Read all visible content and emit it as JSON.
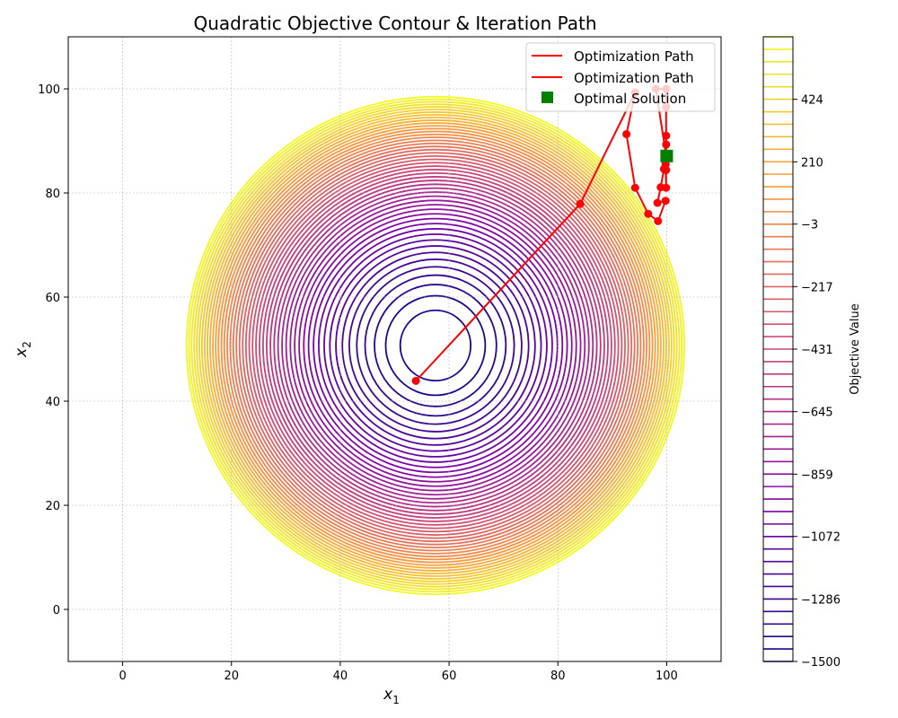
{
  "chart_data": {
    "type": "contour",
    "title": "Quadratic Objective Contour & Iteration Path",
    "xlabel": "x",
    "xlabel_sub": "1",
    "ylabel": "x",
    "ylabel_sub": "2",
    "xlim": [
      -10,
      110
    ],
    "ylim": [
      -10,
      110
    ],
    "xticks": [
      0,
      20,
      40,
      60,
      80,
      100
    ],
    "yticks": [
      0,
      20,
      40,
      60,
      80,
      100
    ],
    "grid": true,
    "contour_center": [
      57.5,
      50.7
    ],
    "contour_levels": {
      "min": -1500,
      "max": 638,
      "count": 51
    },
    "colormap": "plasma",
    "colorbar": {
      "label": "Objective Value",
      "ticks": [
        "424",
        "210",
        "−3",
        "−217",
        "−431",
        "−645",
        "−859",
        "−1072",
        "−1286",
        "−1500"
      ],
      "tick_values": [
        424,
        210,
        -3,
        -217,
        -431,
        -645,
        -859,
        -1072,
        -1286,
        -1500
      ]
    },
    "legend": {
      "placement": "upper-right",
      "entries": [
        "Optimization Path",
        "Optimization Path",
        "Optimal Solution"
      ]
    },
    "series": [
      {
        "name": "Optimization Path",
        "color": "#ff0000",
        "points": [
          [
            53.9,
            43.9
          ],
          [
            84.1,
            77.9
          ],
          [
            94.2,
            99.3
          ],
          [
            92.6,
            91.3
          ],
          [
            94.2,
            81.0
          ],
          [
            96.6,
            76.0
          ],
          [
            98.4,
            74.6
          ],
          [
            99.8,
            78.5
          ],
          [
            98.3,
            78.1
          ],
          [
            98.9,
            81.1
          ],
          [
            99.5,
            84.6
          ],
          [
            99.9,
            84.4
          ],
          [
            99.9,
            81.0
          ],
          [
            99.8,
            85.5
          ],
          [
            99.9,
            89.3
          ],
          [
            99.9,
            91.0
          ],
          [
            99.9,
            96.5
          ],
          [
            99.9,
            100.0
          ],
          [
            98.0,
            100.0
          ],
          [
            99.9,
            87.2
          ]
        ]
      },
      {
        "name": "Optimal Solution",
        "color": "#008000",
        "points": [
          [
            100.0,
            87.1
          ]
        ]
      }
    ]
  }
}
